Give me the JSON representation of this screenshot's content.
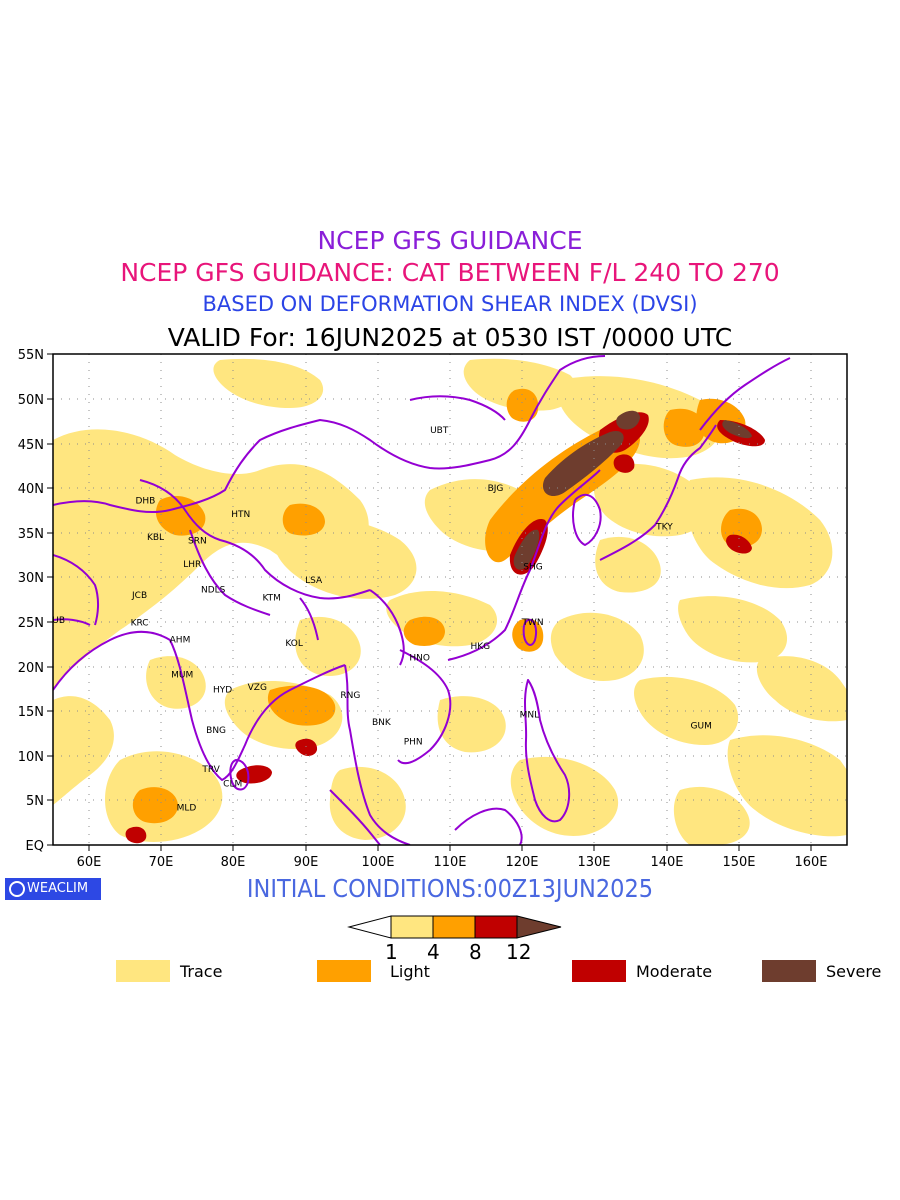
{
  "titles": {
    "line1": "NCEP GFS GUIDANCE",
    "line2": "NCEP GFS GUIDANCE: CAT BETWEEN F/L 240 TO 270",
    "line3": "BASED ON DEFORMATION SHEAR INDEX (DVSI)",
    "line4": "VALID For: 16JUN2025 at 0530 IST /0000 UTC"
  },
  "axes": {
    "lat_labels": [
      "55N",
      "50N",
      "45N",
      "40N",
      "35N",
      "30N",
      "25N",
      "20N",
      "15N",
      "10N",
      "5N",
      "EQ"
    ],
    "lon_labels": [
      "60E",
      "70E",
      "80E",
      "90E",
      "100E",
      "110E",
      "120E",
      "130E",
      "140E",
      "150E",
      "160E"
    ]
  },
  "stations": [
    {
      "code": "UBT",
      "lon": 108.5,
      "lat": 46.5
    },
    {
      "code": "BJG",
      "lon": 116.3,
      "lat": 40.0
    },
    {
      "code": "TKY",
      "lon": 139.7,
      "lat": 35.7
    },
    {
      "code": "DHB",
      "lon": 67.8,
      "lat": 38.6
    },
    {
      "code": "HTN",
      "lon": 81.0,
      "lat": 37.1
    },
    {
      "code": "KBL",
      "lon": 69.2,
      "lat": 34.5
    },
    {
      "code": "SRN",
      "lon": 75.0,
      "lat": 34.1
    },
    {
      "code": "LHR",
      "lon": 74.3,
      "lat": 31.5
    },
    {
      "code": "LSA",
      "lon": 91.1,
      "lat": 29.7
    },
    {
      "code": "SHG",
      "lon": 121.5,
      "lat": 31.2
    },
    {
      "code": "JCB",
      "lon": 67.0,
      "lat": 28.0
    },
    {
      "code": "NDLS",
      "lon": 77.2,
      "lat": 28.6
    },
    {
      "code": "KTM",
      "lon": 85.3,
      "lat": 27.7
    },
    {
      "code": "DUB",
      "lon": 55.3,
      "lat": 25.2
    },
    {
      "code": "KRC",
      "lon": 67.0,
      "lat": 24.9
    },
    {
      "code": "TWN",
      "lon": 121.5,
      "lat": 25.0
    },
    {
      "code": "AHM",
      "lon": 72.6,
      "lat": 23.0
    },
    {
      "code": "KOL",
      "lon": 88.4,
      "lat": 22.6
    },
    {
      "code": "HKG",
      "lon": 114.2,
      "lat": 22.3
    },
    {
      "code": "HNO",
      "lon": 105.8,
      "lat": 21.0
    },
    {
      "code": "MUM",
      "lon": 72.9,
      "lat": 19.1
    },
    {
      "code": "HYD",
      "lon": 78.5,
      "lat": 17.4
    },
    {
      "code": "VZG",
      "lon": 83.3,
      "lat": 17.7
    },
    {
      "code": "RNG",
      "lon": 96.2,
      "lat": 16.8
    },
    {
      "code": "MNL",
      "lon": 121.0,
      "lat": 14.6
    },
    {
      "code": "BNK",
      "lon": 100.5,
      "lat": 13.8
    },
    {
      "code": "GUM",
      "lon": 144.8,
      "lat": 13.4
    },
    {
      "code": "BNG",
      "lon": 77.6,
      "lat": 12.9
    },
    {
      "code": "PHN",
      "lon": 104.9,
      "lat": 11.6
    },
    {
      "code": "TRV",
      "lon": 76.9,
      "lat": 8.5
    },
    {
      "code": "CLM",
      "lon": 79.9,
      "lat": 6.9
    },
    {
      "code": "MLD",
      "lon": 73.5,
      "lat": 4.2
    }
  ],
  "initial_conditions": "INITIAL CONDITIONS:00Z13JUN2025",
  "logo_text": "WEACLIM",
  "colorbar": {
    "thresholds": [
      "1",
      "4",
      "8",
      "12"
    ],
    "colors": [
      "#ffe680",
      "#ffa000",
      "#c00000",
      "#6e3d2e"
    ]
  },
  "legend": [
    {
      "label": "Trace",
      "color": "#ffe680"
    },
    {
      "label": "Light",
      "color": "#ffa000"
    },
    {
      "label": "Moderate",
      "color": "#c00000"
    },
    {
      "label": "Severe",
      "color": "#6e3d2e"
    }
  ],
  "colors": {
    "coastline": "#9400d3",
    "trace": "#ffe680",
    "light": "#ffa000",
    "moderate": "#c00000",
    "severe": "#6e3d2e"
  }
}
